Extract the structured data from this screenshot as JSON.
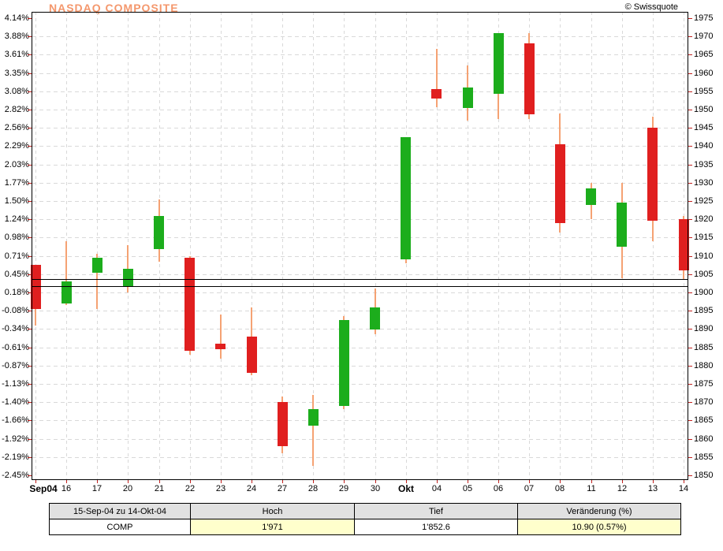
{
  "header": {
    "title": "NASDAQ COMPOSITE",
    "copyright": "© Swissquote",
    "title_color": "#f4976c"
  },
  "chart_data": {
    "type": "candlestick",
    "title": "NASDAQ COMPOSITE",
    "period": "15-Sep-04 zu 14-Okt-04",
    "left_axis_percent_labels": [
      "4.14%",
      "3.88%",
      "3.61%",
      "3.35%",
      "3.08%",
      "2.82%",
      "2.56%",
      "2.29%",
      "2.03%",
      "1.77%",
      "1.50%",
      "1.24%",
      "0.98%",
      "0.71%",
      "0.45%",
      "0.18%",
      "-0.08%",
      "-0.34%",
      "-0.61%",
      "-0.87%",
      "-1.13%",
      "-1.40%",
      "-1.66%",
      "-1.92%",
      "-2.19%",
      "-2.45%"
    ],
    "right_axis_price_labels": [
      "1975",
      "1970",
      "1965",
      "1960",
      "1955",
      "1950",
      "1945",
      "1940",
      "1935",
      "1930",
      "1925",
      "1920",
      "1915",
      "1910",
      "1905",
      "1900",
      "1895",
      "1890",
      "1885",
      "1880",
      "1875",
      "1870",
      "1865",
      "1860",
      "1855",
      "1850"
    ],
    "price_max": 1975,
    "price_min": 1850,
    "grid": true,
    "reference_lines": [
      1903.7,
      1901.7
    ],
    "candles": [
      {
        "label": "Sep04",
        "bold": true,
        "open": 1907.5,
        "high": 1907.5,
        "low": 1891,
        "close": 1895.5
      },
      {
        "label": "16",
        "bold": false,
        "open": 1897,
        "high": 1914,
        "low": 1896.5,
        "close": 1903
      },
      {
        "label": "17",
        "bold": false,
        "open": 1905.5,
        "high": 1910.5,
        "low": 1895.5,
        "close": 1909.5
      },
      {
        "label": "20",
        "bold": false,
        "open": 1901.5,
        "high": 1913,
        "low": 1900,
        "close": 1906.5
      },
      {
        "label": "21",
        "bold": false,
        "open": 1912,
        "high": 1925.5,
        "low": 1908.5,
        "close": 1921
      },
      {
        "label": "22",
        "bold": false,
        "open": 1909.5,
        "high": 1910,
        "low": 1883,
        "close": 1884
      },
      {
        "label": "23",
        "bold": false,
        "open": 1886,
        "high": 1894,
        "low": 1882,
        "close": 1884.5
      },
      {
        "label": "24",
        "bold": false,
        "open": 1888,
        "high": 1896,
        "low": 1877.5,
        "close": 1878
      },
      {
        "label": "27",
        "bold": false,
        "open": 1870,
        "high": 1871.5,
        "low": 1856,
        "close": 1858
      },
      {
        "label": "28",
        "bold": false,
        "open": 1863.5,
        "high": 1872,
        "low": 1852.6,
        "close": 1868
      },
      {
        "label": "29",
        "bold": false,
        "open": 1869,
        "high": 1893.5,
        "low": 1868,
        "close": 1892.5
      },
      {
        "label": "30",
        "bold": false,
        "open": 1890,
        "high": 1901,
        "low": 1888.5,
        "close": 1896
      },
      {
        "label": "Okt",
        "bold": true,
        "open": 1909,
        "high": 1942.5,
        "low": 1908,
        "close": 1942.5
      },
      {
        "label": "04",
        "bold": false,
        "open": 1955.5,
        "high": 1966.5,
        "low": 1950.5,
        "close": 1953
      },
      {
        "label": "05",
        "bold": false,
        "open": 1950.5,
        "high": 1962,
        "low": 1947,
        "close": 1956
      },
      {
        "label": "06",
        "bold": false,
        "open": 1954.5,
        "high": 1971,
        "low": 1947.5,
        "close": 1971
      },
      {
        "label": "07",
        "bold": false,
        "open": 1968,
        "high": 1971,
        "low": 1947.5,
        "close": 1948.5
      },
      {
        "label": "08",
        "bold": false,
        "open": 1940.5,
        "high": 1949,
        "low": 1916.5,
        "close": 1919
      },
      {
        "label": "11",
        "bold": false,
        "open": 1924,
        "high": 1930,
        "low": 1920,
        "close": 1928.5
      },
      {
        "label": "12",
        "bold": false,
        "open": 1912.5,
        "high": 1930,
        "low": 1904,
        "close": 1924.5
      },
      {
        "label": "13",
        "bold": false,
        "open": 1945,
        "high": 1948,
        "low": 1914,
        "close": 1919.5
      },
      {
        "label": "14",
        "bold": false,
        "open": 1920,
        "high": 1921,
        "low": 1903.5,
        "close": 1906
      }
    ],
    "colors": {
      "up": "#1cad1c",
      "down": "#e01f1f",
      "wick": "#f5a273",
      "grid": "#d9d9d9",
      "tick": "#c2221f",
      "axis": "#000000"
    }
  },
  "summary_table": {
    "headers": [
      "15-Sep-04 zu 14-Okt-04",
      "Hoch",
      "Tief",
      "Veränderung (%)"
    ],
    "row": [
      "COMP",
      "1'971",
      "1'852.6",
      "10.90 (0.57%)"
    ],
    "row_backgrounds": [
      "#ffffff",
      "#ffffcc",
      "#ffffff",
      "#ffffcc"
    ]
  }
}
